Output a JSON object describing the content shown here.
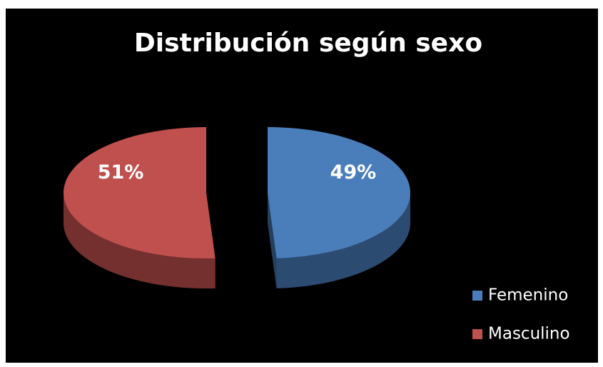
{
  "chart_data": {
    "type": "pie",
    "title": "Distribución según sexo",
    "categories": [
      "Femenino",
      "Masculino"
    ],
    "values": [
      49,
      51
    ],
    "value_labels": [
      "49%",
      "51%"
    ],
    "colors": [
      "#4a7ebb",
      "#c0504d"
    ],
    "legend": "right",
    "exploded": true
  }
}
